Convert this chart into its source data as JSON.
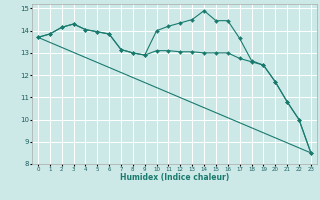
{
  "xlabel": "Humidex (Indice chaleur)",
  "xlim": [
    -0.5,
    23.5
  ],
  "ylim": [
    8,
    15.2
  ],
  "yticks": [
    8,
    9,
    10,
    11,
    12,
    13,
    14,
    15
  ],
  "xticks": [
    0,
    1,
    2,
    3,
    4,
    5,
    6,
    7,
    8,
    9,
    10,
    11,
    12,
    13,
    14,
    15,
    16,
    17,
    18,
    19,
    20,
    21,
    22,
    23
  ],
  "bg_color": "#cce9e8",
  "grid_color": "#ffffff",
  "line_color": "#1a7a6e",
  "line1_x": [
    0,
    1,
    2,
    3,
    4,
    5,
    6,
    7,
    8,
    9,
    10,
    11,
    12,
    13,
    14,
    15,
    16,
    17,
    18,
    19,
    20,
    21,
    22,
    23
  ],
  "line1_y": [
    13.7,
    13.85,
    14.15,
    14.3,
    14.05,
    13.95,
    13.85,
    13.15,
    13.0,
    12.9,
    13.1,
    13.1,
    13.05,
    13.05,
    13.0,
    13.0,
    13.0,
    12.75,
    12.6,
    12.45,
    11.7,
    10.8,
    10.0,
    8.5
  ],
  "line2_x": [
    0,
    1,
    2,
    3,
    4,
    5,
    6,
    7,
    8,
    9,
    10,
    11,
    12,
    13,
    14,
    15,
    16,
    17,
    18,
    19,
    20,
    21,
    22,
    23
  ],
  "line2_y": [
    13.7,
    13.85,
    14.15,
    14.3,
    14.05,
    13.95,
    13.85,
    13.15,
    13.0,
    12.9,
    14.0,
    14.2,
    14.35,
    14.5,
    14.9,
    14.45,
    14.45,
    13.65,
    12.65,
    12.45,
    11.7,
    10.8,
    10.0,
    8.5
  ],
  "line3_x": [
    0,
    23
  ],
  "line3_y": [
    13.7,
    8.5
  ]
}
